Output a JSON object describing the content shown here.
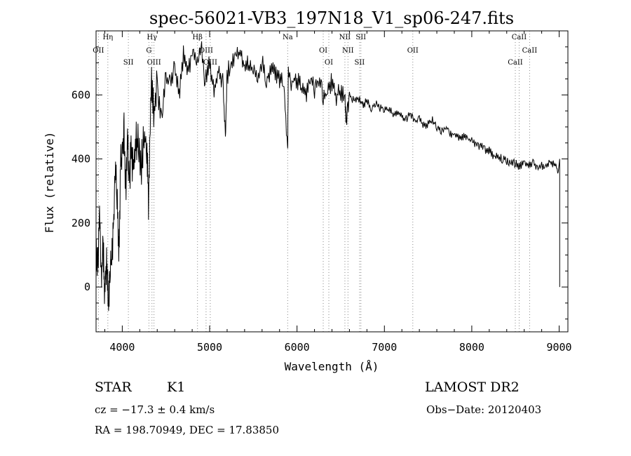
{
  "chart_data": {
    "type": "line",
    "title": "spec-56021-VB3_197N18_V1_sp06-247.fits",
    "xlabel": "Wavelength (Å)",
    "ylabel": "Flux (relative)",
    "xlim": [
      3700,
      9100
    ],
    "ylim": [
      -140,
      800
    ],
    "xticks": [
      4000,
      5000,
      6000,
      7000,
      8000,
      9000
    ],
    "yticks": [
      0,
      200,
      400,
      600
    ],
    "grid": false,
    "series": [
      {
        "x": [
          3700,
          3720,
          3740,
          3760,
          3780,
          3800,
          3820,
          3840,
          3860,
          3880,
          3900,
          3920,
          3940,
          3960,
          3980,
          4000,
          4020,
          4040,
          4060,
          4080,
          4100,
          4130,
          4160,
          4190,
          4220,
          4250,
          4280,
          4300,
          4330,
          4360,
          4400,
          4450,
          4500,
          4550,
          4600,
          4650,
          4700,
          4750,
          4800,
          4850,
          4900,
          4950,
          5000,
          5050,
          5100,
          5150,
          5180,
          5200,
          5250,
          5300,
          5350,
          5400,
          5450,
          5500,
          5550,
          5600,
          5650,
          5700,
          5750,
          5800,
          5850,
          5893,
          5900,
          5950,
          6000,
          6050,
          6100,
          6150,
          6200,
          6250,
          6300,
          6350,
          6400,
          6450,
          6500,
          6550,
          6563,
          6600,
          6650,
          6700,
          6750,
          6800,
          6850,
          6900,
          6950,
          7000,
          7050,
          7100,
          7150,
          7200,
          7250,
          7300,
          7350,
          7400,
          7450,
          7500,
          7550,
          7600,
          7650,
          7700,
          7750,
          7800,
          7850,
          7900,
          7950,
          8000,
          8050,
          8100,
          8150,
          8200,
          8250,
          8300,
          8350,
          8400,
          8450,
          8500,
          8550,
          8600,
          8650,
          8700,
          8750,
          8800,
          8850,
          8900,
          8950,
          8990
        ],
        "y": [
          150,
          60,
          250,
          20,
          120,
          -20,
          80,
          -60,
          60,
          100,
          200,
          360,
          300,
          80,
          380,
          420,
          480,
          300,
          450,
          330,
          420,
          360,
          470,
          430,
          380,
          480,
          420,
          280,
          640,
          540,
          620,
          520,
          660,
          640,
          690,
          600,
          720,
          660,
          740,
          700,
          760,
          640,
          700,
          620,
          680,
          640,
          460,
          660,
          700,
          720,
          730,
          690,
          700,
          680,
          660,
          700,
          640,
          690,
          670,
          650,
          620,
          430,
          660,
          640,
          650,
          620,
          600,
          660,
          610,
          650,
          590,
          620,
          640,
          600,
          610,
          580,
          520,
          600,
          580,
          590,
          570,
          580,
          560,
          575,
          560,
          555,
          555,
          540,
          545,
          530,
          525,
          540,
          515,
          525,
          505,
          510,
          520,
          500,
          490,
          500,
          480,
          480,
          470,
          470,
          460,
          455,
          445,
          440,
          430,
          425,
          410,
          405,
          400,
          395,
          390,
          385,
          375,
          395,
          380,
          385,
          375,
          380,
          370,
          390,
          385,
          360
        ]
      }
    ],
    "lines": [
      {
        "label": "Hη",
        "x": 3835
      },
      {
        "label": "OII",
        "x": 3727
      },
      {
        "label": "SII",
        "x": 4070
      },
      {
        "label": "Hγ",
        "x": 4340
      },
      {
        "label": "G",
        "x": 4305
      },
      {
        "label": "OIII",
        "x": 4363
      },
      {
        "label": "Hβ",
        "x": 4861
      },
      {
        "label": "OIII",
        "x": 4959
      },
      {
        "label": "OIII",
        "x": 5007
      },
      {
        "label": "Na",
        "x": 5893
      },
      {
        "label": "OI",
        "x": 6300
      },
      {
        "label": "OI",
        "x": 6364
      },
      {
        "label": "NII",
        "x": 6548
      },
      {
        "label": "NII",
        "x": 6583
      },
      {
        "label": "SII",
        "x": 6716
      },
      {
        "label": "SII",
        "x": 6731
      },
      {
        "label": "OII",
        "x": 7325
      },
      {
        "label": "CaII",
        "x": 8498
      },
      {
        "label": "CaII",
        "x": 8542
      },
      {
        "label": "CaII",
        "x": 8662
      }
    ]
  },
  "info": {
    "object_class": "STAR",
    "subclass": "K1",
    "survey": "LAMOST DR2",
    "cz": "cz = −17.3 ± 0.4 km/s",
    "obs_date": "Obs−Date: 20120403",
    "coords": "RA = 198.70949, DEC =  17.83850"
  }
}
